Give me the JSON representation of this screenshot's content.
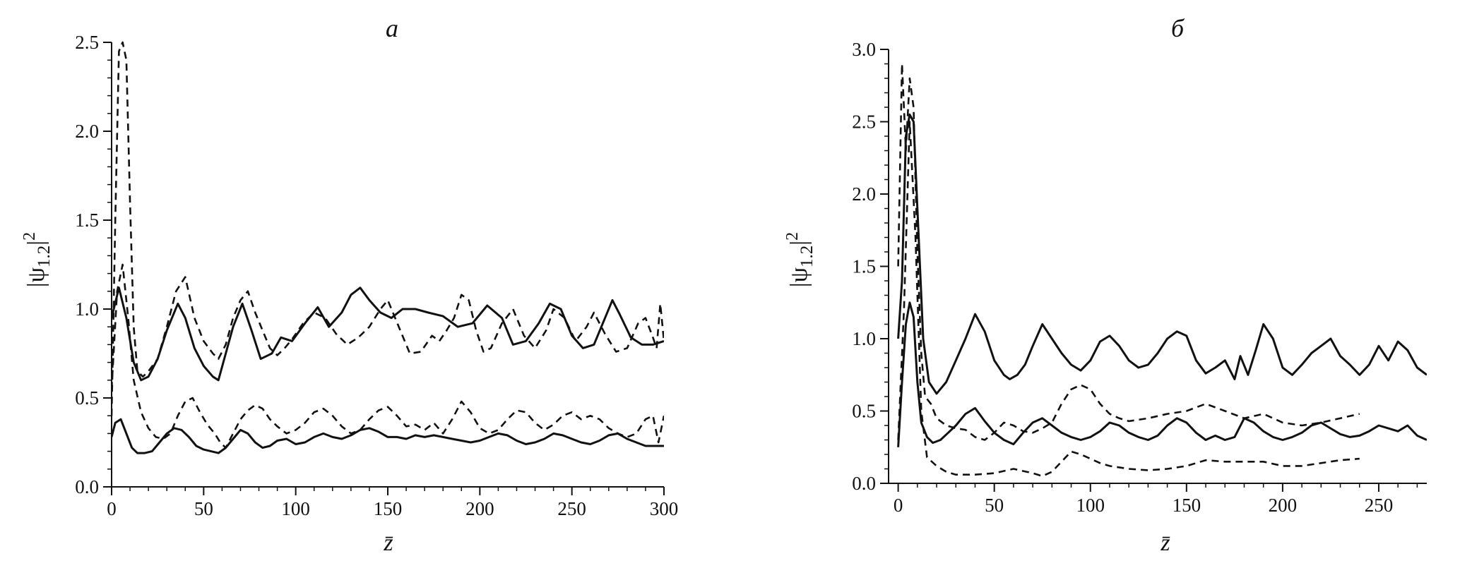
{
  "chart_data": [
    {
      "type": "line",
      "panel_label": "a",
      "xlabel": "z̄",
      "ylabel": "|ψ1.2|2",
      "xlim": [
        0,
        300
      ],
      "ylim": [
        0,
        2.5
      ],
      "xticks": [
        0,
        50,
        100,
        150,
        200,
        250,
        300
      ],
      "yticks": [
        0.0,
        0.5,
        1.0,
        1.5,
        2.0,
        2.5
      ],
      "xtick_labels": [
        "0",
        "50",
        "100",
        "150",
        "200",
        "250",
        "300"
      ],
      "ytick_labels": [
        "0.0",
        "0.5",
        "1.0",
        "1.5",
        "2.0",
        "2.5"
      ],
      "grid": false,
      "legend": "none",
      "series": [
        {
          "style": "solid",
          "x": [
            0,
            4,
            8,
            12,
            16,
            20,
            25,
            30,
            36,
            40,
            45,
            50,
            55,
            58,
            62,
            66,
            71,
            76,
            81,
            87,
            92,
            98,
            105,
            112,
            118,
            125,
            130,
            135,
            140,
            146,
            152,
            158,
            165,
            172,
            180,
            188,
            196,
            204,
            212,
            218,
            225,
            232,
            238,
            244,
            250,
            256,
            262,
            268,
            272,
            276,
            282,
            288,
            294,
            300
          ],
          "y": [
            0.95,
            1.12,
            0.95,
            0.7,
            0.6,
            0.62,
            0.72,
            0.88,
            1.03,
            0.95,
            0.78,
            0.68,
            0.62,
            0.6,
            0.75,
            0.9,
            1.03,
            0.88,
            0.72,
            0.75,
            0.84,
            0.82,
            0.92,
            1.01,
            0.9,
            0.98,
            1.08,
            1.12,
            1.05,
            0.98,
            0.95,
            1.0,
            1.0,
            0.98,
            0.96,
            0.9,
            0.92,
            1.02,
            0.95,
            0.8,
            0.82,
            0.92,
            1.03,
            1.0,
            0.85,
            0.78,
            0.8,
            0.95,
            1.05,
            0.97,
            0.84,
            0.8,
            0.8,
            0.82
          ]
        },
        {
          "style": "dashed",
          "x": [
            0,
            2,
            4,
            6,
            8,
            10,
            12,
            14,
            17,
            20,
            25,
            30,
            35,
            40,
            45,
            50,
            55,
            58,
            62,
            66,
            70,
            74,
            78,
            82,
            86,
            90,
            94,
            98,
            104,
            110,
            116,
            122,
            128,
            134,
            140,
            146,
            150,
            156,
            162,
            168,
            174,
            178,
            182,
            186,
            190,
            194,
            198,
            202,
            206,
            212,
            218,
            224,
            230,
            236,
            240,
            246,
            252,
            258,
            262,
            268,
            274,
            280,
            286,
            290,
            294,
            296,
            298,
            300
          ],
          "y": [
            0.4,
            1.5,
            2.45,
            2.5,
            2.4,
            1.6,
            0.9,
            0.65,
            0.62,
            0.65,
            0.72,
            0.9,
            1.1,
            1.18,
            0.95,
            0.82,
            0.75,
            0.72,
            0.8,
            0.95,
            1.05,
            1.1,
            0.98,
            0.88,
            0.78,
            0.74,
            0.78,
            0.83,
            0.92,
            0.98,
            0.95,
            0.86,
            0.8,
            0.84,
            0.9,
            1.0,
            1.05,
            0.9,
            0.75,
            0.76,
            0.85,
            0.82,
            0.88,
            0.95,
            1.08,
            1.05,
            0.88,
            0.76,
            0.78,
            0.92,
            1.0,
            0.85,
            0.78,
            0.88,
            1.0,
            0.95,
            0.82,
            0.9,
            0.98,
            0.86,
            0.76,
            0.78,
            0.92,
            0.95,
            0.84,
            0.78,
            1.03,
            0.82
          ]
        },
        {
          "style": "solid",
          "x": [
            0,
            2,
            5,
            8,
            11,
            14,
            18,
            22,
            26,
            30,
            34,
            38,
            42,
            46,
            50,
            54,
            58,
            62,
            66,
            70,
            74,
            78,
            82,
            86,
            90,
            95,
            100,
            105,
            110,
            115,
            120,
            125,
            130,
            135,
            140,
            145,
            150,
            155,
            160,
            165,
            170,
            175,
            180,
            185,
            190,
            195,
            200,
            205,
            210,
            215,
            220,
            225,
            230,
            235,
            240,
            245,
            250,
            255,
            260,
            265,
            270,
            275,
            280,
            285,
            290,
            295,
            300
          ],
          "y": [
            0.28,
            0.36,
            0.38,
            0.3,
            0.22,
            0.19,
            0.19,
            0.2,
            0.25,
            0.3,
            0.33,
            0.32,
            0.28,
            0.23,
            0.21,
            0.2,
            0.19,
            0.22,
            0.27,
            0.32,
            0.3,
            0.25,
            0.22,
            0.23,
            0.26,
            0.27,
            0.24,
            0.25,
            0.28,
            0.3,
            0.28,
            0.27,
            0.29,
            0.32,
            0.33,
            0.31,
            0.28,
            0.28,
            0.27,
            0.29,
            0.28,
            0.29,
            0.28,
            0.27,
            0.26,
            0.25,
            0.26,
            0.28,
            0.3,
            0.29,
            0.26,
            0.24,
            0.25,
            0.27,
            0.3,
            0.29,
            0.27,
            0.25,
            0.24,
            0.26,
            0.29,
            0.3,
            0.27,
            0.25,
            0.23,
            0.23,
            0.23
          ]
        },
        {
          "style": "dashed",
          "x": [
            0,
            3,
            6,
            9,
            12,
            16,
            20,
            24,
            28,
            32,
            36,
            40,
            44,
            48,
            52,
            56,
            59,
            62,
            66,
            70,
            74,
            78,
            82,
            86,
            90,
            95,
            100,
            105,
            110,
            115,
            120,
            125,
            130,
            135,
            140,
            145,
            150,
            155,
            160,
            165,
            170,
            175,
            180,
            185,
            190,
            195,
            200,
            205,
            210,
            215,
            220,
            225,
            230,
            235,
            240,
            245,
            250,
            255,
            260,
            265,
            270,
            275,
            280,
            285,
            290,
            294,
            297,
            300
          ],
          "y": [
            0.55,
            1.1,
            1.25,
            0.95,
            0.6,
            0.42,
            0.33,
            0.28,
            0.27,
            0.3,
            0.4,
            0.48,
            0.5,
            0.42,
            0.35,
            0.3,
            0.25,
            0.22,
            0.3,
            0.38,
            0.43,
            0.46,
            0.44,
            0.38,
            0.34,
            0.3,
            0.32,
            0.36,
            0.42,
            0.44,
            0.4,
            0.34,
            0.3,
            0.32,
            0.38,
            0.43,
            0.45,
            0.4,
            0.34,
            0.35,
            0.32,
            0.36,
            0.3,
            0.38,
            0.48,
            0.42,
            0.33,
            0.3,
            0.32,
            0.38,
            0.43,
            0.42,
            0.36,
            0.32,
            0.35,
            0.4,
            0.42,
            0.38,
            0.4,
            0.38,
            0.33,
            0.3,
            0.28,
            0.3,
            0.38,
            0.4,
            0.25,
            0.4
          ]
        }
      ]
    },
    {
      "type": "line",
      "panel_label": "б",
      "xlabel": "z̄",
      "ylabel": "|ψ1.2|2",
      "xlim": [
        -5,
        275
      ],
      "ylim": [
        0,
        3.0
      ],
      "xticks": [
        0,
        50,
        100,
        150,
        200,
        250
      ],
      "yticks": [
        0.0,
        0.5,
        1.0,
        1.5,
        2.0,
        2.5,
        3.0
      ],
      "xtick_labels": [
        "0",
        "50",
        "100",
        "150",
        "200",
        "250"
      ],
      "ytick_labels": [
        "0.0",
        "0.5",
        "1.0",
        "1.5",
        "2.0",
        "2.5",
        "3.0"
      ],
      "grid": false,
      "legend": "none",
      "series": [
        {
          "style": "solid",
          "x": [
            0,
            2,
            4,
            6,
            8,
            10,
            13,
            16,
            20,
            25,
            30,
            35,
            40,
            45,
            50,
            55,
            58,
            62,
            66,
            70,
            75,
            80,
            85,
            90,
            95,
            100,
            105,
            110,
            115,
            120,
            125,
            130,
            135,
            140,
            145,
            150,
            155,
            160,
            165,
            170,
            175,
            178,
            182,
            186,
            190,
            195,
            200,
            205,
            210,
            215,
            220,
            225,
            230,
            235,
            240,
            245,
            250,
            255,
            260,
            265,
            270,
            275
          ],
          "y": [
            1.0,
            1.4,
            2.4,
            2.55,
            2.5,
            1.9,
            1.0,
            0.7,
            0.62,
            0.7,
            0.85,
            1.0,
            1.17,
            1.05,
            0.85,
            0.75,
            0.72,
            0.75,
            0.82,
            0.95,
            1.1,
            1.0,
            0.9,
            0.82,
            0.78,
            0.85,
            0.98,
            1.02,
            0.95,
            0.85,
            0.8,
            0.82,
            0.9,
            1.0,
            1.05,
            1.02,
            0.85,
            0.76,
            0.8,
            0.85,
            0.72,
            0.88,
            0.75,
            0.92,
            1.1,
            1.0,
            0.8,
            0.75,
            0.82,
            0.9,
            0.95,
            1.0,
            0.88,
            0.82,
            0.75,
            0.82,
            0.95,
            0.85,
            0.98,
            0.92,
            0.8,
            0.75
          ]
        },
        {
          "style": "dashed",
          "x": [
            0,
            2,
            4,
            6,
            8,
            10,
            12,
            14,
            17,
            20,
            25,
            30,
            35,
            40,
            45,
            50,
            55,
            60,
            65,
            70,
            75,
            80,
            85,
            90,
            95,
            100,
            105,
            110,
            115,
            120,
            130,
            140,
            150,
            160,
            170,
            180,
            190,
            200,
            210,
            220,
            230,
            240
          ],
          "y": [
            1.5,
            2.9,
            2.3,
            2.8,
            2.6,
            1.6,
            0.9,
            0.6,
            0.55,
            0.45,
            0.4,
            0.38,
            0.37,
            0.32,
            0.3,
            0.35,
            0.42,
            0.4,
            0.36,
            0.35,
            0.38,
            0.42,
            0.55,
            0.65,
            0.68,
            0.65,
            0.55,
            0.48,
            0.45,
            0.43,
            0.45,
            0.48,
            0.5,
            0.55,
            0.5,
            0.45,
            0.48,
            0.42,
            0.4,
            0.42,
            0.45,
            0.48
          ]
        },
        {
          "style": "solid",
          "x": [
            0,
            2,
            4,
            6,
            8,
            10,
            12,
            15,
            18,
            22,
            26,
            30,
            35,
            40,
            45,
            50,
            55,
            60,
            65,
            70,
            75,
            80,
            85,
            90,
            95,
            100,
            105,
            110,
            115,
            120,
            125,
            130,
            135,
            140,
            145,
            150,
            155,
            160,
            165,
            170,
            175,
            180,
            185,
            190,
            195,
            200,
            205,
            210,
            215,
            220,
            225,
            230,
            235,
            240,
            245,
            250,
            255,
            260,
            265,
            270,
            275
          ],
          "y": [
            0.25,
            0.7,
            1.1,
            1.25,
            1.15,
            0.7,
            0.42,
            0.32,
            0.28,
            0.3,
            0.35,
            0.4,
            0.48,
            0.52,
            0.43,
            0.35,
            0.3,
            0.27,
            0.35,
            0.42,
            0.45,
            0.4,
            0.35,
            0.32,
            0.3,
            0.32,
            0.36,
            0.42,
            0.4,
            0.35,
            0.32,
            0.3,
            0.33,
            0.4,
            0.45,
            0.42,
            0.35,
            0.3,
            0.33,
            0.3,
            0.32,
            0.45,
            0.42,
            0.36,
            0.32,
            0.3,
            0.32,
            0.35,
            0.4,
            0.42,
            0.38,
            0.34,
            0.32,
            0.33,
            0.36,
            0.4,
            0.38,
            0.36,
            0.4,
            0.33,
            0.3
          ]
        },
        {
          "style": "dashed",
          "x": [
            0,
            3,
            6,
            9,
            12,
            15,
            20,
            25,
            30,
            40,
            50,
            60,
            70,
            75,
            80,
            85,
            90,
            95,
            100,
            105,
            110,
            120,
            130,
            140,
            150,
            160,
            170,
            180,
            190,
            200,
            210,
            220,
            230,
            240
          ],
          "y": [
            0.3,
            1.2,
            2.5,
            1.7,
            0.5,
            0.18,
            0.12,
            0.08,
            0.06,
            0.06,
            0.07,
            0.1,
            0.07,
            0.05,
            0.08,
            0.15,
            0.22,
            0.2,
            0.17,
            0.14,
            0.12,
            0.1,
            0.09,
            0.1,
            0.12,
            0.16,
            0.15,
            0.15,
            0.15,
            0.12,
            0.12,
            0.14,
            0.16,
            0.17
          ]
        }
      ]
    }
  ]
}
